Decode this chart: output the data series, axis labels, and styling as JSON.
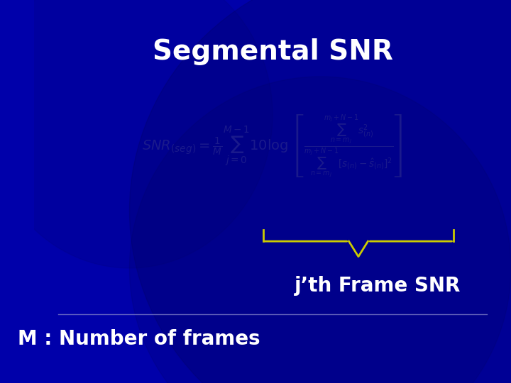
{
  "title": "Segmental SNR",
  "title_color": "#FFFFFF",
  "title_fontsize": 28,
  "bg_color": "#0000AA",
  "formula_color": "#000080",
  "label_jth": "j’th Frame SNR",
  "label_M": "M : Number of frames",
  "label_color": "#FFFFFF",
  "label_jth_fontsize": 20,
  "label_M_fontsize": 20,
  "main_formula": "SNR_{(seg)} = \\frac{1}{M}\\sum_{j=0}^{M-1}10\\log\\left[\\frac{\\sum_{n=m_j}^{m_j+N-1} s_{(n)}^{2}}{\\sum_{n=m_j}^{m_j+N-1}[s_{(n)}-\\hat{s}_{(n)}]^{2}}\\right]",
  "brace_color": "#CCCC00",
  "figsize": [
    7.2,
    5.4
  ],
  "dpi": 100
}
